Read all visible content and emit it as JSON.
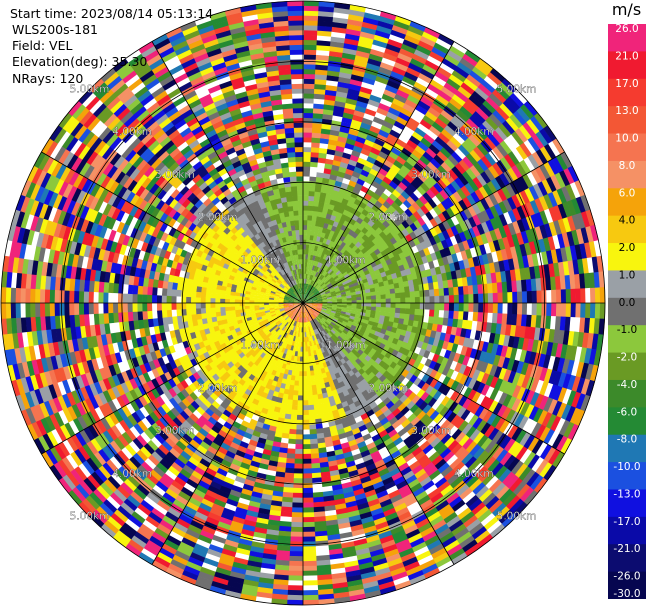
{
  "header": {
    "start_time": "Start time: 2023/08/14 05:13:14",
    "instrument": "WLS200s-181",
    "field": "Field: VEL",
    "elevation": "Elevation(deg): 35.30",
    "nrays": "NRays: 120"
  },
  "colorbar": {
    "unit": "m/s",
    "ticks": [
      "26.0",
      "21.0",
      "17.0",
      "13.0",
      "10.0",
      "8.0",
      "6.0",
      "4.0",
      "2.0",
      "1.0",
      "0.0",
      "-1.0",
      "-2.0",
      "-4.0",
      "-6.0",
      "-8.0",
      "-10.0",
      "-13.0",
      "-17.0",
      "-21.0",
      "-26.0",
      "-30.0"
    ],
    "colors": [
      "#f0247a",
      "#f01a30",
      "#f53b2f",
      "#f35735",
      "#f57450",
      "#f59165",
      "#f5a30a",
      "#f7c910",
      "#f8f50e",
      "#9aa0a6",
      "#707070",
      "#8cc83c",
      "#6a9a24",
      "#3c8a2a",
      "#248a34",
      "#1f78b4",
      "#1b50e0",
      "#1010e0",
      "#0a0aa8",
      "#0c0c70",
      "#060650"
    ]
  },
  "chart_data": {
    "type": "ppi",
    "field": "VEL",
    "units": "m/s",
    "range_ring_labels": [
      "1.00km",
      "2.00km",
      "3.00km",
      "4.00km",
      "5.00km"
    ],
    "range_rings_km": [
      1,
      2,
      3,
      4,
      5
    ],
    "max_range_km": 5.0,
    "nrays": 120,
    "elevation_deg": 35.3,
    "vmin": -30.0,
    "vmax": 26.0,
    "pattern": {
      "near_core_range_km": 0.35,
      "sector_positive_azimuth_deg": 240,
      "sector_negative_azimuth_deg": 60,
      "coherent_range_km": 2.0,
      "noisy_beyond_km": 2.3
    }
  }
}
